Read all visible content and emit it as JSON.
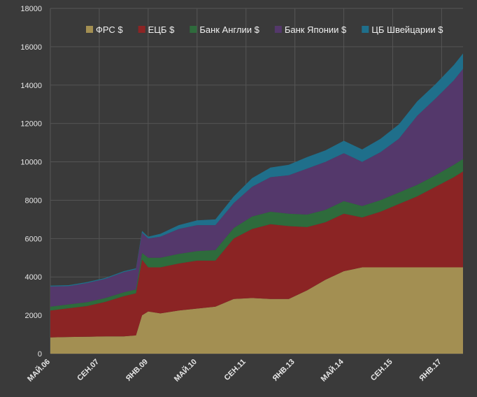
{
  "chart_data": {
    "type": "area",
    "stacked": true,
    "ylim": [
      0,
      18000
    ],
    "yticks": [
      0,
      2000,
      4000,
      6000,
      8000,
      10000,
      12000,
      14000,
      16000,
      18000
    ],
    "x_range": [
      "2006-05",
      "2017-08"
    ],
    "xticks": [
      {
        "label": "МАЙ.06",
        "date": "2006-05"
      },
      {
        "label": "СЕН.07",
        "date": "2007-09"
      },
      {
        "label": "ЯНВ.09",
        "date": "2009-01"
      },
      {
        "label": "МАЙ.10",
        "date": "2010-05"
      },
      {
        "label": "СЕН.11",
        "date": "2011-09"
      },
      {
        "label": "ЯНВ.13",
        "date": "2013-01"
      },
      {
        "label": "МАЙ.14",
        "date": "2014-05"
      },
      {
        "label": "СЕН.15",
        "date": "2015-09"
      },
      {
        "label": "ЯНВ.17",
        "date": "2017-01"
      }
    ],
    "grid": true,
    "legend_position": "top",
    "x": [
      "2006-05",
      "2006-11",
      "2007-05",
      "2007-11",
      "2008-05",
      "2008-09",
      "2008-11",
      "2009-01",
      "2009-05",
      "2009-11",
      "2010-05",
      "2010-11",
      "2011-05",
      "2011-11",
      "2012-05",
      "2012-11",
      "2013-05",
      "2013-11",
      "2014-05",
      "2014-11",
      "2015-05",
      "2015-11",
      "2016-05",
      "2016-11",
      "2017-05",
      "2017-08"
    ],
    "series": [
      {
        "name": "ФРС  $",
        "color": "#a38f52",
        "values": [
          850,
          870,
          880,
          900,
          900,
          950,
          2000,
          2200,
          2100,
          2250,
          2350,
          2450,
          2850,
          2900,
          2850,
          2850,
          3300,
          3850,
          4300,
          4500,
          4500,
          4500,
          4500,
          4500,
          4500,
          4500
        ]
      },
      {
        "name": "ЕЦБ $",
        "color": "#8b2424",
        "values": [
          1400,
          1500,
          1600,
          1800,
          2100,
          2200,
          2900,
          2300,
          2400,
          2450,
          2500,
          2400,
          3150,
          3600,
          3900,
          3800,
          3300,
          3000,
          3000,
          2600,
          2900,
          3300,
          3700,
          4200,
          4700,
          5000
        ]
      },
      {
        "name": "Банк Англии $",
        "color": "#2e6b3c",
        "values": [
          200,
          200,
          200,
          200,
          200,
          200,
          350,
          500,
          500,
          500,
          500,
          550,
          550,
          650,
          650,
          650,
          650,
          650,
          650,
          600,
          600,
          600,
          600,
          600,
          650,
          650
        ]
      },
      {
        "name": "Банк Японии $",
        "color": "#54386b",
        "values": [
          1050,
          950,
          1000,
          1000,
          1050,
          1050,
          1050,
          1000,
          1100,
          1300,
          1350,
          1300,
          1300,
          1550,
          1800,
          2000,
          2400,
          2500,
          2500,
          2300,
          2500,
          2800,
          3600,
          4000,
          4400,
          4700
        ]
      },
      {
        "name": "ЦБ Швейцарии $",
        "color": "#1f6f8b",
        "values": [
          50,
          50,
          50,
          50,
          50,
          50,
          100,
          100,
          150,
          200,
          250,
          300,
          350,
          450,
          500,
          550,
          600,
          600,
          650,
          650,
          700,
          750,
          750,
          750,
          800,
          800
        ]
      }
    ]
  }
}
